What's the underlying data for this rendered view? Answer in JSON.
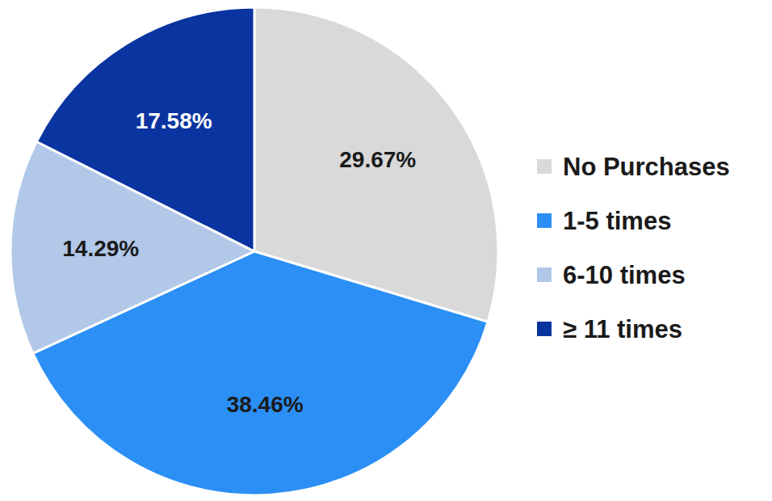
{
  "chart_data": {
    "type": "pie",
    "categories": [
      "No Purchases",
      "1-5 times",
      "6-10 times",
      "≥ 11 times"
    ],
    "values": [
      29.67,
      38.46,
      14.29,
      17.58
    ],
    "value_labels": [
      "29.67%",
      "38.46%",
      "14.29%",
      "17.58%"
    ],
    "colors": [
      "#d9d9d9",
      "#2b8ff5",
      "#b1c8e8",
      "#0a34a0"
    ],
    "data_labels": true,
    "legend": "right"
  }
}
